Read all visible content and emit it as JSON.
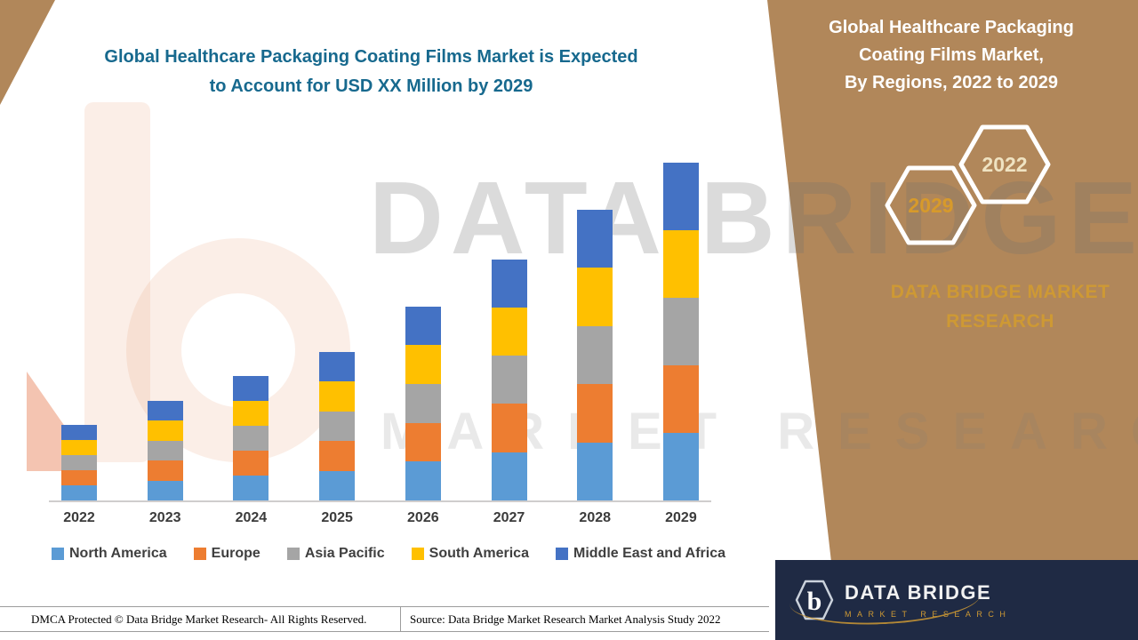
{
  "main_title": {
    "line1": "Global Healthcare Packaging Coating Films Market is Expected",
    "line2": "to Account for USD XX Million by 2029"
  },
  "right_panel": {
    "title_line1": "Global Healthcare Packaging",
    "title_line2": "Coating Films Market,",
    "title_line3": "By Regions, 2022 to 2029",
    "hexagon_back_label": "2022",
    "hexagon_front_label": "2029",
    "brand_line1": "DATA BRIDGE MARKET",
    "brand_line2": "RESEARCH"
  },
  "watermark": {
    "line1": "DATA BRIDGE",
    "line2": "MARKET RESEARCH"
  },
  "logo_box": {
    "icon_letter": "b",
    "name": "DATA BRIDGE",
    "tagline": "MARKET RESEARCH"
  },
  "footer": {
    "dmca": "DMCA Protected © Data Bridge Market Research- All Rights Reserved.",
    "source": "Source: Data Bridge Market Research Market Analysis Study 2022"
  },
  "colors": {
    "panel_brown": "#B1875A",
    "title_teal": "#17698E",
    "brand_gold": "#CE9934",
    "logo_navy": "#1F2A44"
  },
  "chart_data": {
    "type": "bar",
    "stacked": true,
    "title": "Global Healthcare Packaging Coating Films Market is Expected to Account for USD XX Million by 2029",
    "xlabel": "",
    "ylabel": "",
    "ylim": [
      0,
      100
    ],
    "grid": false,
    "legend_position": "bottom",
    "value_labels": false,
    "note": "No numeric axis shown in source; values are relative units estimated from bar heights (2029 total = 100)",
    "categories": [
      "2022",
      "2023",
      "2024",
      "2025",
      "2026",
      "2027",
      "2028",
      "2029"
    ],
    "series": [
      {
        "name": "North America",
        "color": "#5B9BD5",
        "values": [
          4.5,
          5.9,
          7.4,
          8.8,
          11.5,
          14.3,
          17.2,
          20
        ]
      },
      {
        "name": "Europe",
        "color": "#ED7D31",
        "values": [
          4.5,
          5.9,
          7.4,
          8.8,
          11.5,
          14.3,
          17.2,
          20
        ]
      },
      {
        "name": "Asia Pacific",
        "color": "#A5A5A5",
        "values": [
          4.5,
          5.9,
          7.4,
          8.8,
          11.5,
          14.3,
          17.2,
          20
        ]
      },
      {
        "name": "South America",
        "color": "#FFC000",
        "values": [
          4.5,
          5.9,
          7.4,
          8.8,
          11.5,
          14.3,
          17.2,
          20
        ]
      },
      {
        "name": "Middle East and Africa",
        "color": "#4472C4",
        "values": [
          4.5,
          5.9,
          7.4,
          8.8,
          11.5,
          14.3,
          17.2,
          20
        ]
      }
    ]
  }
}
